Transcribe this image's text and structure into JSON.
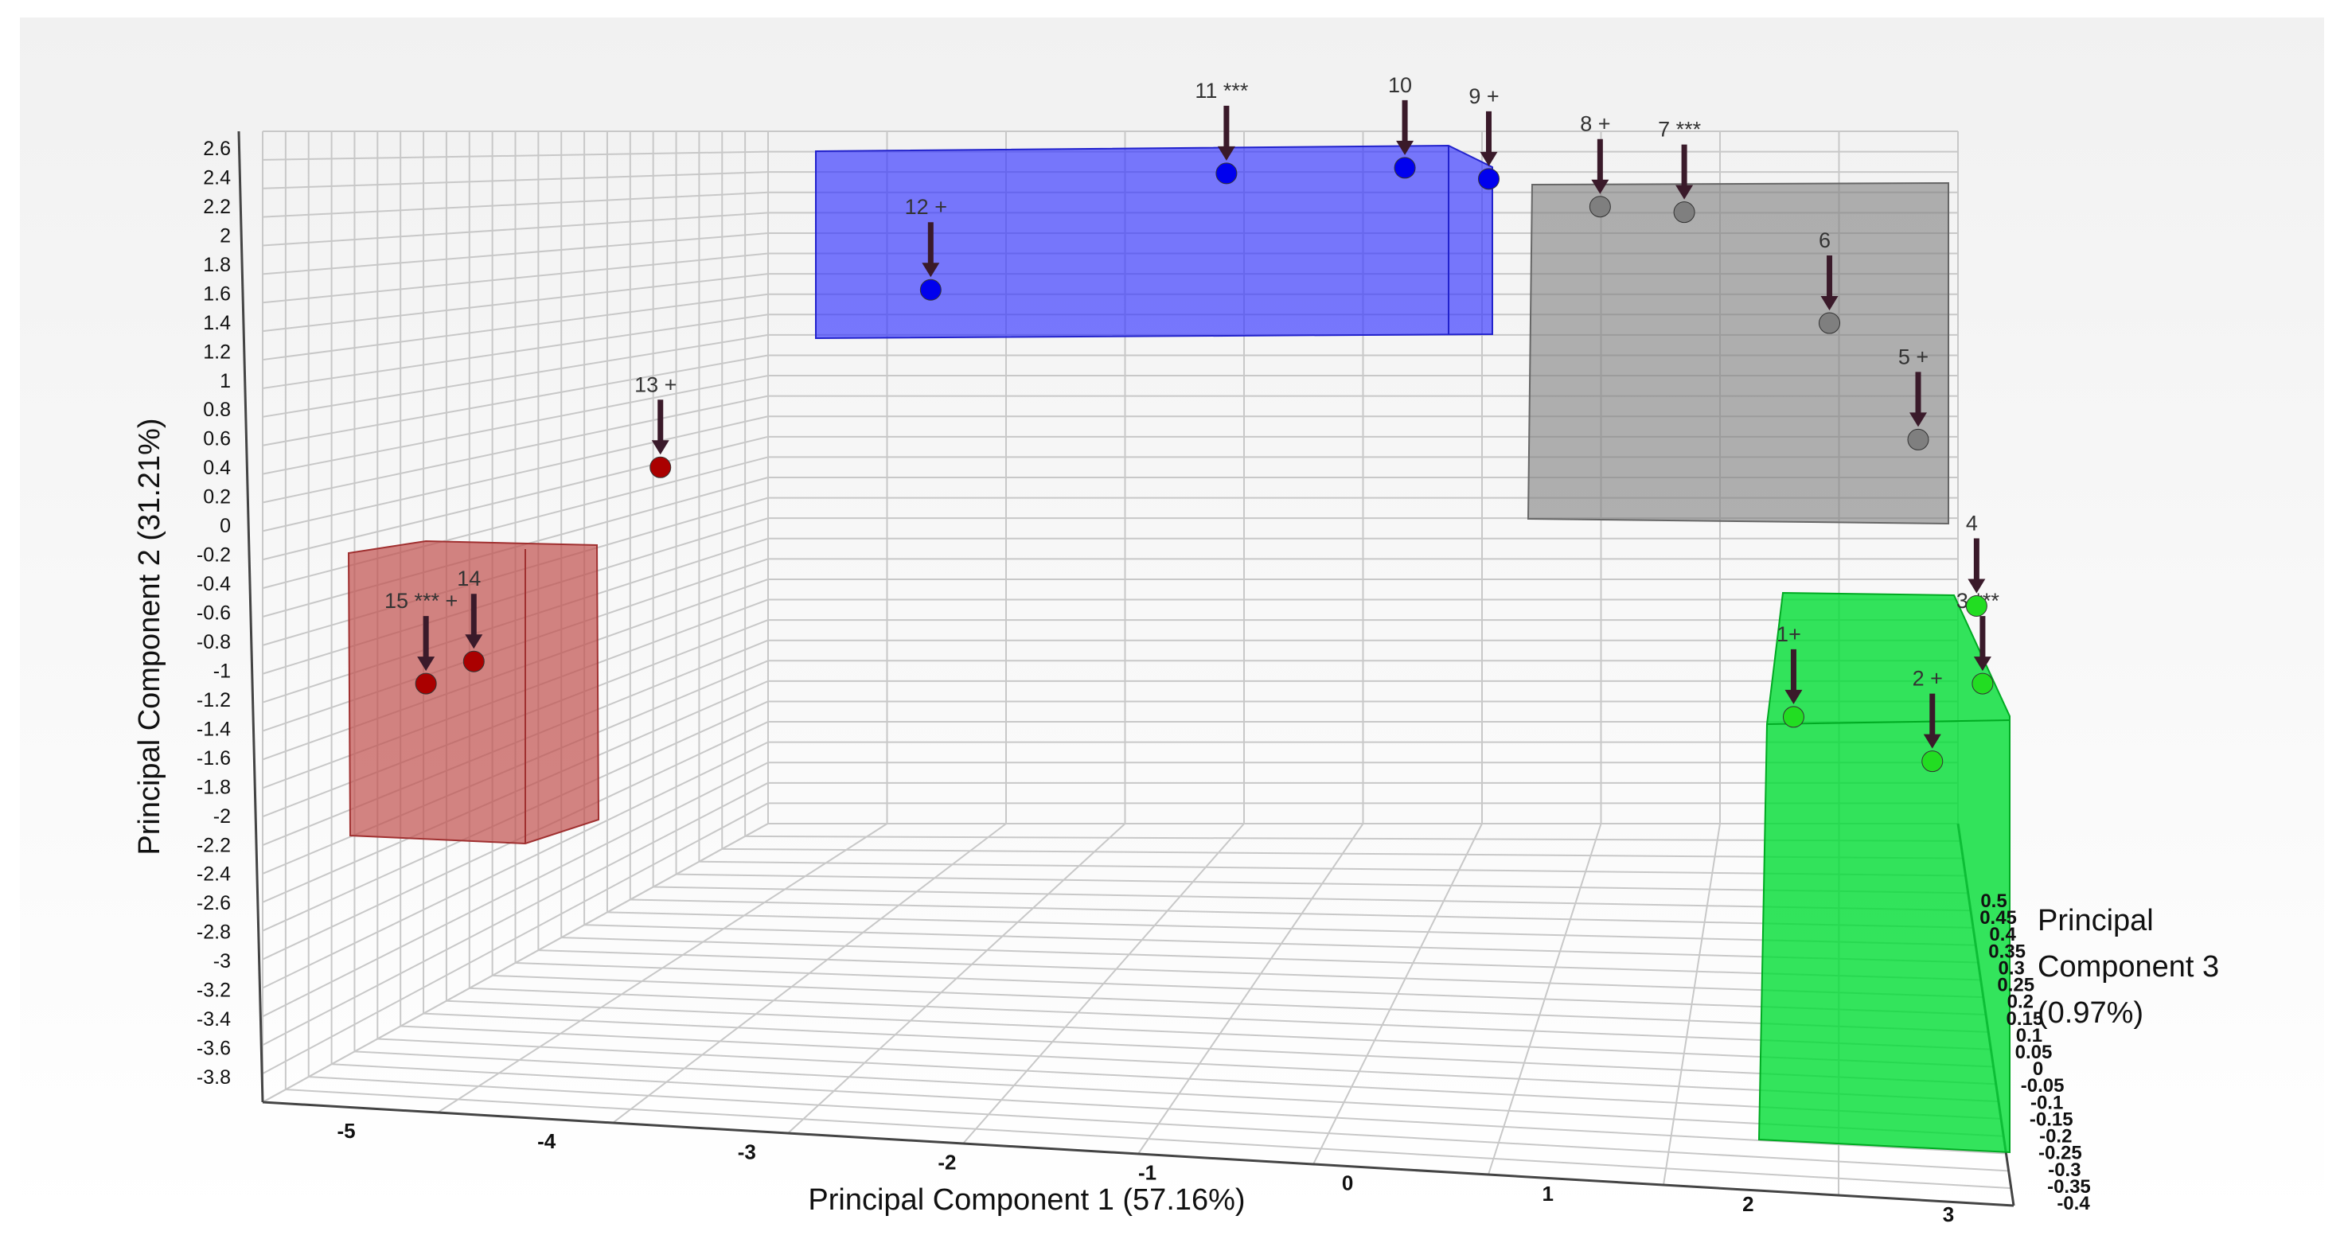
{
  "chart_data": {
    "type": "scatter",
    "subtype": "3d-scatter",
    "title": "",
    "xlabel": "Principal Component 1 (57.16%)",
    "ylabel": "Principal Component 2 (31.21%)",
    "zlabel_lines": [
      "Principal",
      "Component 3",
      "(0.97%)"
    ],
    "x_ticks": [
      "-5",
      "-4",
      "-3",
      "-2",
      "-1",
      "0",
      "1",
      "2",
      "3"
    ],
    "y_ticks": [
      "2.6",
      "2.4",
      "2.2",
      "2",
      "1.8",
      "1.6",
      "1.4",
      "1.2",
      "1",
      "0.8",
      "0.6",
      "0.4",
      "0.2",
      "0",
      "-0.2",
      "-0.4",
      "-0.6",
      "-0.8",
      "-1",
      "-1.2",
      "-1.4",
      "-1.6",
      "-1.8",
      "-2",
      "-2.2",
      "-2.4",
      "-2.6",
      "-2.8",
      "-3",
      "-3.2",
      "-3.4",
      "-3.6",
      "-3.8"
    ],
    "z_ticks": [
      "0.5",
      "0.45",
      "0.4",
      "0.35",
      "0.3",
      "0.25",
      "0.2",
      "0.15",
      "0.1",
      "0.05",
      "0",
      "-0.05",
      "-0.1",
      "-0.15",
      "-0.2",
      "-0.25",
      "-0.3",
      "-0.35",
      "-0.4"
    ],
    "xlim": [
      -5.4,
      3.3
    ],
    "ylim": [
      -3.9,
      2.7
    ],
    "grid": true,
    "legend": "none",
    "groups": [
      {
        "color": "#3333ff",
        "points": [
          "9",
          "10",
          "11",
          "12"
        ]
      },
      {
        "color": "#7f7f7f",
        "points": [
          "5",
          "6",
          "7",
          "8"
        ]
      },
      {
        "color": "#00dd33",
        "points": [
          "1",
          "2",
          "3",
          "4"
        ]
      },
      {
        "color": "#c0504d",
        "points": [
          "13",
          "14",
          "15"
        ]
      }
    ],
    "points": [
      {
        "id": "1",
        "label": "1+",
        "x": 2.3,
        "y": -2.4,
        "color": "#22dd22"
      },
      {
        "id": "2",
        "label": "2 +",
        "x": 3.05,
        "y": -2.8,
        "color": "#22dd22"
      },
      {
        "id": "3",
        "label": "3 ***",
        "x": 3.3,
        "y": -2.1,
        "color": "#22dd22"
      },
      {
        "id": "4",
        "label": "4",
        "x": 3.25,
        "y": -1.4,
        "color": "#22dd22"
      },
      {
        "id": "5",
        "label": "5 +",
        "x": 2.9,
        "y": 0.1,
        "color": "#7f7f7f"
      },
      {
        "id": "6",
        "label": "6",
        "x": 2.4,
        "y": 1.15,
        "color": "#7f7f7f"
      },
      {
        "id": "7",
        "label": "7 ***",
        "x": 1.6,
        "y": 2.15,
        "color": "#7f7f7f"
      },
      {
        "id": "8",
        "label": "8 +",
        "x": 1.15,
        "y": 2.2,
        "color": "#7f7f7f"
      },
      {
        "id": "9",
        "label": "9 +",
        "x": 0.55,
        "y": 2.45,
        "color": "#0000ee"
      },
      {
        "id": "10",
        "label": "10",
        "x": 0.1,
        "y": 2.55,
        "color": "#0000ee"
      },
      {
        "id": "11",
        "label": "11 ***",
        "x": -0.85,
        "y": 2.5,
        "color": "#0000ee"
      },
      {
        "id": "12",
        "label": "12 +",
        "x": -2.4,
        "y": 1.45,
        "color": "#0000ee"
      },
      {
        "id": "13",
        "label": "13 +",
        "x": -3.8,
        "y": -0.15,
        "color": "#aa0000"
      },
      {
        "id": "14",
        "label": "14",
        "x": -4.75,
        "y": -1.9,
        "color": "#aa0000"
      },
      {
        "id": "15",
        "label": "15 *** +",
        "x": -5.0,
        "y": -2.1,
        "color": "#aa0000"
      }
    ]
  }
}
